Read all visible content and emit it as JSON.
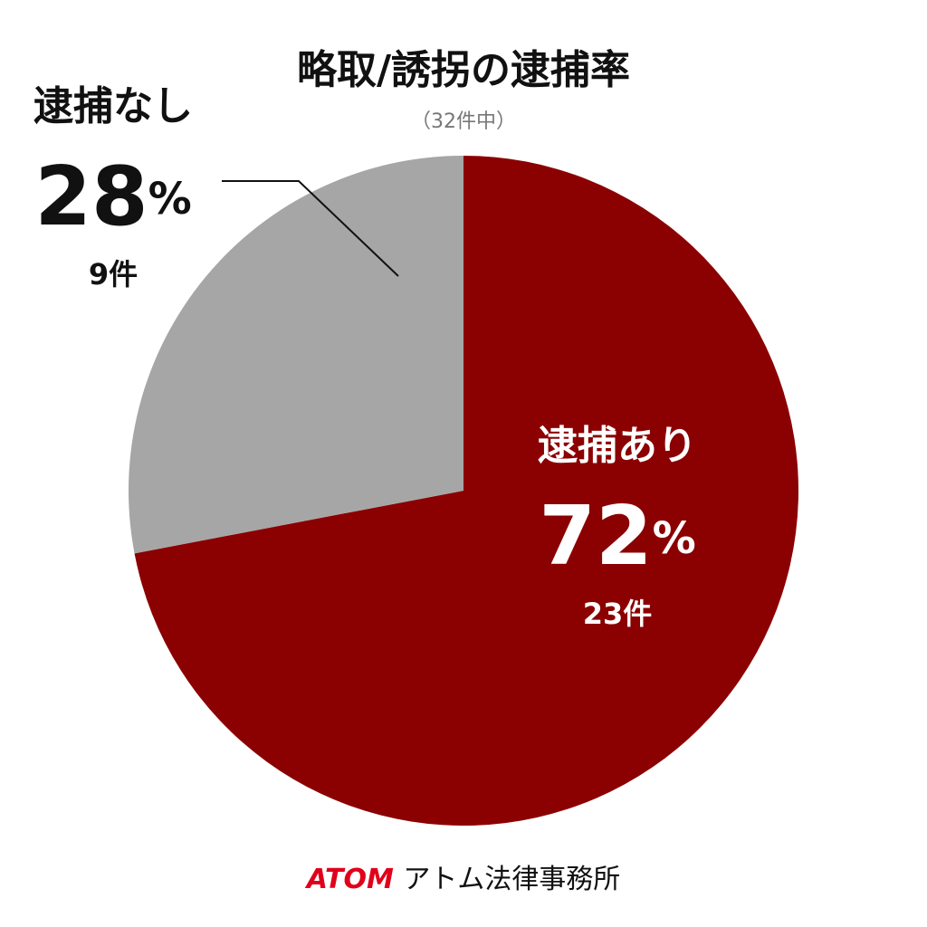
{
  "chart_data": {
    "type": "pie",
    "title": "略取/誘拐の逮捕率",
    "subtitle": "（32件中）",
    "categories": [
      "逮捕あり",
      "逮捕なし"
    ],
    "values": [
      72,
      28
    ],
    "value_labels": [
      "72%",
      "28%"
    ],
    "count_labels": [
      "23件",
      "9件"
    ],
    "colors": [
      "#8b0000",
      "#a6a6a6"
    ],
    "footer": {
      "brand": "ATOM",
      "name": "アトム法律事務所"
    }
  }
}
